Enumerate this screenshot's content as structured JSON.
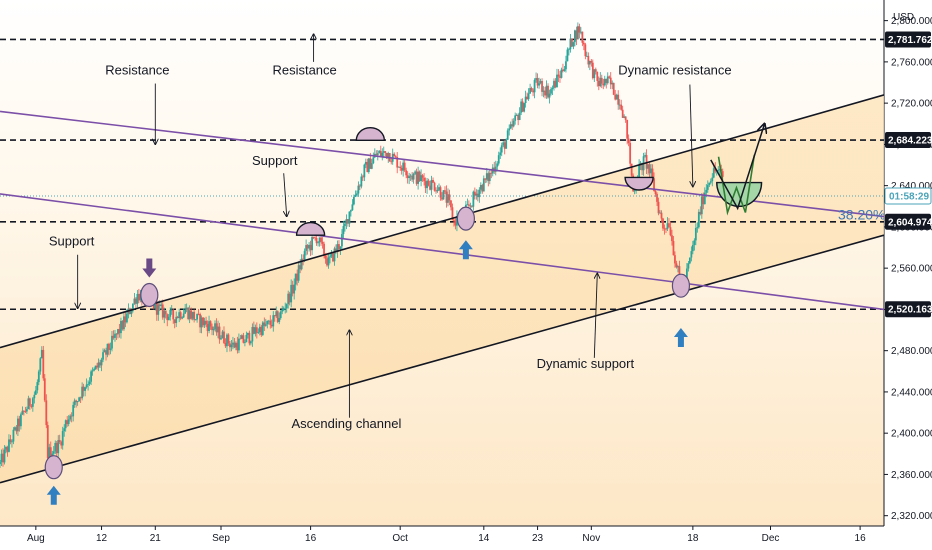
{
  "chart_data": {
    "type": "candlestick",
    "currency": "USD",
    "yaxis": {
      "range": [
        2310,
        2820
      ],
      "ticks": [
        2320,
        2360,
        2400,
        2440,
        2480,
        2520,
        2560,
        2600,
        2640,
        2680,
        2720,
        2760,
        2800
      ],
      "tick_labels": [
        "2,320.000",
        "2,360.000",
        "2,400.000",
        "2,440.000",
        "2,480.000",
        "2,520.000",
        "2,560.000",
        "2,600.000",
        "2,640.000",
        "2,680.000",
        "2,720.000",
        "2,760.000",
        "2,800.000"
      ]
    },
    "xaxis": {
      "range_days": [
        0,
        148
      ],
      "ticks": [
        {
          "label": "Aug",
          "day": 6
        },
        {
          "label": "12",
          "day": 17
        },
        {
          "label": "21",
          "day": 26
        },
        {
          "label": "Sep",
          "day": 37
        },
        {
          "label": "16",
          "day": 52
        },
        {
          "label": "Oct",
          "day": 67
        },
        {
          "label": "14",
          "day": 81
        },
        {
          "label": "23",
          "day": 90
        },
        {
          "label": "Nov",
          "day": 99
        },
        {
          "label": "18",
          "day": 116
        },
        {
          "label": "Dec",
          "day": 129
        },
        {
          "label": "16",
          "day": 144
        }
      ]
    },
    "price_path": [
      [
        0,
        2370
      ],
      [
        2,
        2395
      ],
      [
        4,
        2420
      ],
      [
        6,
        2440
      ],
      [
        7,
        2475
      ],
      [
        8,
        2380
      ],
      [
        10,
        2390
      ],
      [
        11,
        2410
      ],
      [
        14,
        2445
      ],
      [
        17,
        2470
      ],
      [
        19,
        2490
      ],
      [
        21,
        2510
      ],
      [
        23,
        2535
      ],
      [
        25,
        2528
      ],
      [
        27,
        2518
      ],
      [
        29,
        2512
      ],
      [
        31,
        2520
      ],
      [
        33,
        2510
      ],
      [
        35,
        2505
      ],
      [
        37,
        2495
      ],
      [
        39,
        2485
      ],
      [
        41,
        2490
      ],
      [
        43,
        2500
      ],
      [
        45,
        2505
      ],
      [
        47,
        2515
      ],
      [
        49,
        2540
      ],
      [
        51,
        2575
      ],
      [
        53,
        2590
      ],
      [
        55,
        2565
      ],
      [
        57,
        2585
      ],
      [
        59,
        2625
      ],
      [
        61,
        2655
      ],
      [
        63,
        2670
      ],
      [
        65,
        2672
      ],
      [
        67,
        2660
      ],
      [
        69,
        2650
      ],
      [
        71,
        2645
      ],
      [
        73,
        2640
      ],
      [
        75,
        2625
      ],
      [
        76,
        2605
      ],
      [
        78,
        2615
      ],
      [
        80,
        2635
      ],
      [
        82,
        2650
      ],
      [
        84,
        2675
      ],
      [
        86,
        2700
      ],
      [
        88,
        2725
      ],
      [
        90,
        2740
      ],
      [
        92,
        2730
      ],
      [
        94,
        2750
      ],
      [
        96,
        2785
      ],
      [
        97,
        2792
      ],
      [
        98,
        2770
      ],
      [
        100,
        2740
      ],
      [
        102,
        2740
      ],
      [
        104,
        2720
      ],
      [
        105,
        2690
      ],
      [
        106,
        2635
      ],
      [
        107,
        2655
      ],
      [
        108,
        2665
      ],
      [
        109,
        2650
      ],
      [
        110,
        2625
      ],
      [
        111,
        2600
      ],
      [
        112,
        2605
      ],
      [
        113,
        2570
      ],
      [
        114,
        2540
      ],
      [
        115,
        2555
      ],
      [
        116,
        2580
      ],
      [
        117,
        2610
      ],
      [
        118,
        2635
      ],
      [
        119,
        2650
      ],
      [
        120,
        2655
      ],
      [
        121,
        2648
      ]
    ],
    "last_price": 2630,
    "last_price_countdown": "01:58:29",
    "price_labels": [
      {
        "value": 2781.762,
        "label": "2,781.762"
      },
      {
        "value": 2684.223,
        "label": "2,684.223"
      },
      {
        "value": 2604.974,
        "label": "2,604.974"
      },
      {
        "value": 2520.163,
        "label": "2,520.163"
      }
    ],
    "horizontal_levels": [
      2781.762,
      2684.223,
      2604.974,
      2520.163
    ],
    "fib_label": "38.20%",
    "fib_level": 2612,
    "lines": {
      "resistance_top": [
        [
          0,
          2712
        ],
        [
          148,
          2610
        ]
      ],
      "resistance_low": [
        [
          0,
          2632
        ],
        [
          148,
          2520
        ]
      ],
      "channel_upper": [
        [
          0,
          2483
        ],
        [
          148,
          2728
        ]
      ],
      "channel_lower": [
        [
          0,
          2352
        ],
        [
          148,
          2592
        ]
      ]
    },
    "annotations": [
      {
        "text": "Resistance",
        "day": 23,
        "price": 2748
      },
      {
        "text": "Resistance",
        "day": 51,
        "price": 2748
      },
      {
        "text": "Dynamic resistance",
        "day": 113,
        "price": 2748
      },
      {
        "text": "Support",
        "day": 46,
        "price": 2660
      },
      {
        "text": "Support",
        "day": 12,
        "price": 2582
      },
      {
        "text": "Ascending channel",
        "day": 58,
        "price": 2405
      },
      {
        "text": "Dynamic support",
        "day": 98,
        "price": 2463
      }
    ]
  }
}
